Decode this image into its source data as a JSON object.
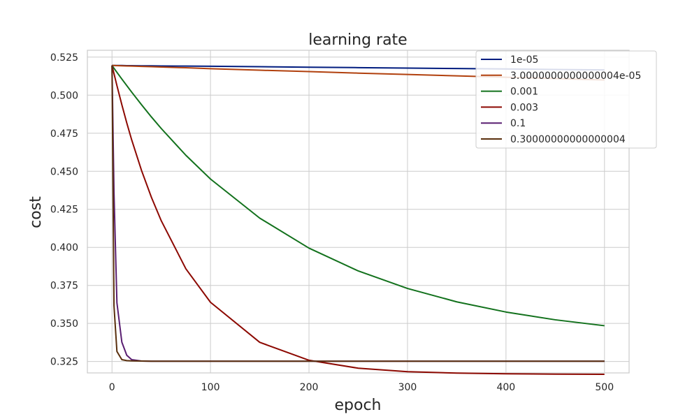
{
  "chart_data": {
    "type": "line",
    "title": "learning rate",
    "xlabel": "epoch",
    "ylabel": "cost",
    "xlim": [
      -25,
      525
    ],
    "ylim": [
      0.3175,
      0.5295
    ],
    "xticks": [
      0,
      100,
      200,
      300,
      400,
      500
    ],
    "xtick_labels": [
      "0",
      "100",
      "200",
      "300",
      "400",
      "500"
    ],
    "yticks": [
      0.325,
      0.35,
      0.375,
      0.4,
      0.425,
      0.45,
      0.475,
      0.5,
      0.525
    ],
    "ytick_labels": [
      "0.325",
      "0.350",
      "0.375",
      "0.400",
      "0.425",
      "0.450",
      "0.475",
      "0.500",
      "0.525"
    ],
    "grid": true,
    "legend_position": "top-right",
    "x": [
      0,
      2,
      5,
      10,
      15,
      20,
      30,
      40,
      50,
      75,
      100,
      150,
      200,
      250,
      300,
      350,
      400,
      450,
      500
    ],
    "series": [
      {
        "name": "1e-05",
        "color": "#001c7f",
        "values": [
          0.5195,
          0.5195,
          0.5195,
          0.5195,
          0.5194,
          0.5194,
          0.5193,
          0.5193,
          0.5192,
          0.5191,
          0.519,
          0.5187,
          0.5184,
          0.5181,
          0.5178,
          0.5175,
          0.5172,
          0.5169,
          0.5166
        ]
      },
      {
        "name": "3.0000000000000004e-05",
        "color": "#b1400d",
        "values": [
          0.5195,
          0.5195,
          0.5194,
          0.5193,
          0.5192,
          0.5191,
          0.5189,
          0.5187,
          0.5185,
          0.518,
          0.5174,
          0.5164,
          0.5155,
          0.5145,
          0.5136,
          0.5127,
          0.5118,
          0.5109,
          0.51
        ]
      },
      {
        "name": "0.001",
        "color": "#12711c",
        "values": [
          0.5195,
          0.5177,
          0.515,
          0.5106,
          0.5063,
          0.502,
          0.4937,
          0.4857,
          0.4781,
          0.4605,
          0.4449,
          0.4192,
          0.3995,
          0.3845,
          0.373,
          0.3642,
          0.3575,
          0.3524,
          0.3485
        ]
      },
      {
        "name": "0.003",
        "color": "#8c0800",
        "values": [
          0.5195,
          0.5142,
          0.5063,
          0.4937,
          0.4818,
          0.4706,
          0.4505,
          0.4329,
          0.4175,
          0.3859,
          0.3639,
          0.3376,
          0.3258,
          0.3206,
          0.3183,
          0.3174,
          0.3169,
          0.3167,
          0.3166
        ]
      },
      {
        "name": "0.1",
        "color": "#591e71",
        "values": [
          0.5195,
          0.4364,
          0.3636,
          0.3377,
          0.3291,
          0.3262,
          0.3253,
          0.3252,
          0.3252,
          0.3252,
          0.3252,
          0.3252,
          0.3252,
          0.3252,
          0.3252,
          0.3252,
          0.3252,
          0.3252,
          0.3252
        ]
      },
      {
        "name": "0.30000000000000004",
        "color": "#592f0d",
        "values": [
          0.5195,
          0.3617,
          0.3316,
          0.3262,
          0.3256,
          0.3254,
          0.3253,
          0.3252,
          0.3252,
          0.3252,
          0.3252,
          0.3252,
          0.3252,
          0.3252,
          0.3252,
          0.3252,
          0.3252,
          0.3252,
          0.3252
        ]
      }
    ]
  }
}
